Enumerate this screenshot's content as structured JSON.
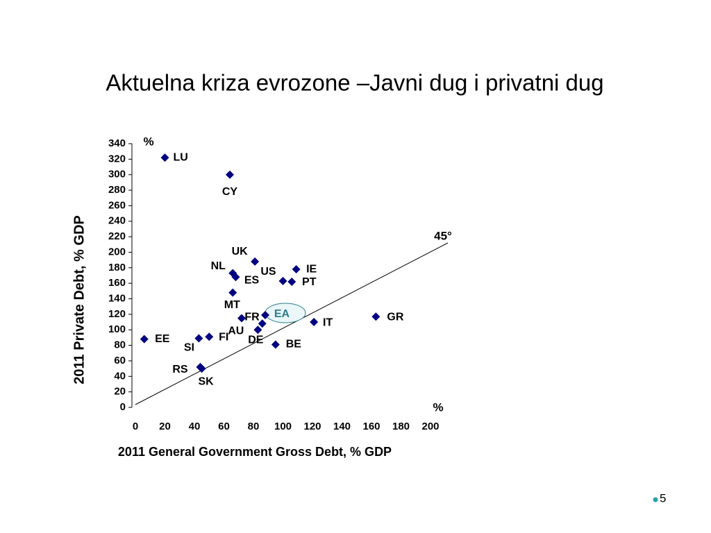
{
  "chart_data": {
    "type": "scatter",
    "title": "Aktuelna kriza evrozone –Javni dug i privatni dug",
    "x_label": "2011 General Government Gross Debt, % GDP",
    "y_label": "2011 Private Debt, % GDP",
    "annotations": [
      "%",
      "%",
      "45°"
    ],
    "series": [
      {
        "color": "#000080",
        "labels": [
          "LU",
          "CY",
          "UK",
          "NL",
          "ES",
          "US",
          "PT",
          "IE",
          "MT",
          "FR",
          "EA",
          "AU",
          "DE",
          "IT",
          "GR",
          "BE",
          "FI",
          "SI",
          "EE",
          "RS",
          "SK"
        ],
        "x": [
          20,
          64,
          81,
          66,
          68,
          100,
          106,
          109,
          66,
          72,
          88,
          86,
          83,
          121,
          163,
          95,
          50,
          43,
          6,
          44,
          45
        ],
        "values": [
          322,
          300,
          188,
          173,
          168,
          163,
          162,
          178,
          148,
          115,
          119,
          108,
          100,
          110,
          117,
          81,
          91,
          89,
          88,
          52,
          50
        ]
      }
    ],
    "xlim": [
      0,
      200
    ],
    "xticks": [
      0,
      20,
      40,
      60,
      80,
      100,
      120,
      140,
      160,
      180,
      200
    ],
    "ylim": [
      0,
      340
    ],
    "yticks": [
      0,
      20,
      40,
      60,
      80,
      100,
      120,
      140,
      160,
      180,
      200,
      220,
      240,
      260,
      280,
      300,
      320,
      340
    ]
  },
  "slide_number": "5"
}
